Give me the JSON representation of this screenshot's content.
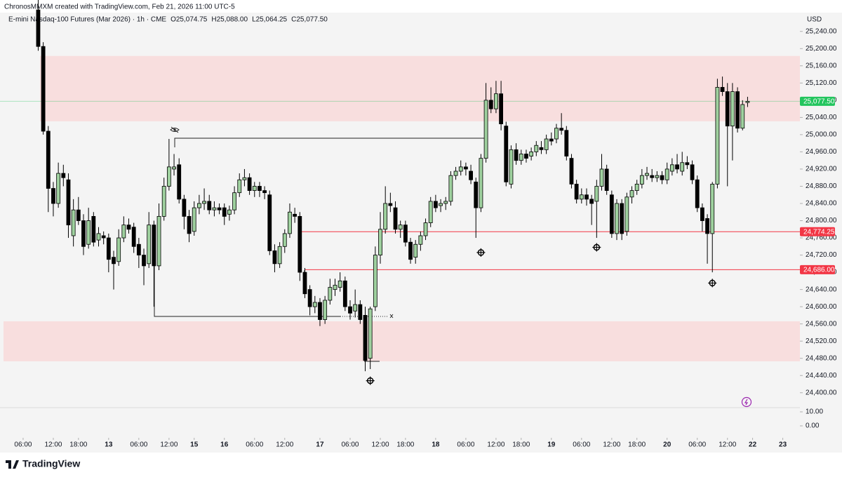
{
  "header": {
    "credit": "ChronosMMXM created with TradingView.com, Feb 21, 2026 11:00 UTC-5",
    "brand": "TradingView"
  },
  "chart_data": {
    "type": "candlestick",
    "title": "E-mini Nasdaq-100 Futures (Mar 2026) · 1h · CME",
    "ohlc_legend": [
      "O25,074.75",
      "H25,088.00",
      "L25,064.25",
      "C25,077.50"
    ],
    "currency": "USD",
    "up_color": "#9fd19f",
    "down_color": "#000000",
    "x": [
      3,
      4,
      5,
      6,
      7,
      8,
      9,
      10,
      11,
      12,
      13,
      14,
      15,
      16,
      17,
      18,
      19,
      20,
      21,
      22,
      23,
      24,
      25,
      26,
      27,
      28,
      29,
      30,
      31,
      32,
      33,
      34,
      35,
      36,
      37,
      38,
      39,
      40,
      41,
      42,
      43,
      44,
      45,
      46,
      47,
      48,
      49,
      50,
      51,
      52,
      53,
      54,
      55,
      56,
      57,
      58,
      59,
      60,
      61,
      62,
      63,
      64,
      65,
      66,
      67,
      68,
      69,
      70,
      71,
      72,
      73,
      74,
      75,
      76,
      77,
      78,
      79,
      80,
      81,
      82,
      83,
      84,
      85,
      86,
      87,
      88,
      89,
      90,
      91,
      92,
      93,
      94,
      95,
      96,
      97,
      98,
      99,
      100,
      101,
      102,
      103,
      104,
      105,
      106,
      107,
      108,
      109,
      110,
      111,
      112,
      113,
      114,
      115,
      116,
      117,
      118,
      119,
      120,
      121,
      122,
      123,
      124,
      125,
      126,
      127,
      128,
      129,
      130,
      131,
      132,
      133,
      134,
      135,
      136,
      137,
      138,
      139,
      140,
      141,
      142,
      143,
      144
    ],
    "open": [
      25290,
      25205,
      25008,
      24875,
      24840,
      24910,
      24895,
      24765,
      24825,
      24800,
      24745,
      24810,
      24755,
      24765,
      24760,
      24715,
      24705,
      24760,
      24790,
      24785,
      24745,
      24720,
      24700,
      24790,
      24695,
      24810,
      24880,
      24920,
      24930,
      24850,
      24810,
      24775,
      24830,
      24840,
      24845,
      24825,
      24830,
      24830,
      24815,
      24825,
      24865,
      24895,
      24900,
      24870,
      24880,
      24870,
      24860,
      24730,
      24700,
      24740,
      24770,
      24815,
      24810,
      24680,
      24640,
      24600,
      24610,
      24570,
      24615,
      24640,
      24645,
      24660,
      24600,
      24590,
      24605,
      24580,
      24480,
      24600,
      24720,
      24780,
      24840,
      24830,
      24780,
      24790,
      24750,
      24715,
      24745,
      24765,
      24795,
      24845,
      24835,
      24840,
      24845,
      24905,
      24915,
      24925,
      24915,
      24890,
      24830,
      24945,
      25080,
      25060,
      25095,
      25020,
      24885,
      24965,
      24940,
      24955,
      24950,
      24960,
      24970,
      24965,
      24990,
      24990,
      25015,
      25010,
      24945,
      24885,
      24850,
      24860,
      24850,
      24845,
      24880,
      24920,
      24860,
      24770,
      24840,
      24775,
      24855,
      24870,
      24885,
      24905,
      24905,
      24900,
      24905,
      24895,
      24915,
      24930,
      24915,
      24935,
      24930,
      24895,
      24830,
      24805,
      24770,
      24885,
      25110,
      25100,
      25020,
      25100,
      25015,
      25074.75
    ],
    "high": [
      25330,
      25215,
      25020,
      24890,
      24935,
      24930,
      24910,
      24850,
      24855,
      24815,
      24830,
      24820,
      24785,
      24775,
      24770,
      24730,
      24780,
      24810,
      24805,
      24795,
      24760,
      24735,
      24820,
      24800,
      24840,
      24900,
      24990,
      24955,
      24945,
      24860,
      24825,
      24845,
      24860,
      24875,
      24860,
      24845,
      24840,
      24840,
      24835,
      24880,
      24910,
      24920,
      24910,
      24890,
      24890,
      24880,
      24870,
      24745,
      24750,
      24780,
      24840,
      24830,
      24820,
      24690,
      24650,
      24625,
      24620,
      24625,
      24665,
      24665,
      24680,
      24670,
      24615,
      24640,
      24615,
      24600,
      24600,
      24740,
      24820,
      24880,
      24865,
      24845,
      24800,
      24800,
      24760,
      24755,
      24775,
      24805,
      24855,
      24860,
      24850,
      24855,
      24915,
      24925,
      24940,
      24935,
      24930,
      24900,
      24955,
      25120,
      25110,
      25125,
      25125,
      25030,
      24975,
      24980,
      24965,
      24965,
      24970,
      24985,
      24985,
      25000,
      25005,
      25025,
      25050,
      25020,
      24955,
      24895,
      24875,
      24875,
      24860,
      24895,
      24955,
      24930,
      24870,
      24850,
      24850,
      24865,
      24880,
      24895,
      24920,
      24925,
      24920,
      24915,
      24915,
      24935,
      24945,
      24955,
      24960,
      24950,
      24940,
      24905,
      24840,
      24815,
      24890,
      25130,
      25135,
      25120,
      25120,
      25110,
      25080,
      25088
    ],
    "low": [
      25195,
      25000,
      24820,
      24810,
      24830,
      24880,
      24760,
      24740,
      24790,
      24720,
      24735,
      24740,
      24740,
      24745,
      24680,
      24640,
      24695,
      24750,
      24770,
      24725,
      24690,
      24650,
      24690,
      24600,
      24685,
      24800,
      24870,
      24905,
      24840,
      24780,
      24750,
      24765,
      24815,
      24825,
      24815,
      24810,
      24815,
      24790,
      24800,
      24815,
      24855,
      24880,
      24860,
      24855,
      24855,
      24850,
      24720,
      24680,
      24690,
      24725,
      24760,
      24795,
      24660,
      24620,
      24580,
      24585,
      24555,
      24560,
      24605,
      24625,
      24635,
      24590,
      24570,
      24575,
      24560,
      24450,
      24455,
      24590,
      24700,
      24770,
      24820,
      24770,
      24760,
      24740,
      24700,
      24700,
      24730,
      24755,
      24785,
      24820,
      24820,
      24825,
      24835,
      24895,
      24905,
      24905,
      24885,
      24760,
      24820,
      24935,
      25050,
      25050,
      25010,
      24880,
      24875,
      24930,
      24930,
      24935,
      24940,
      24950,
      24955,
      24955,
      24975,
      24980,
      25000,
      24940,
      24875,
      24840,
      24840,
      24835,
      24790,
      24760,
      24870,
      24860,
      24760,
      24755,
      24755,
      24765,
      24840,
      24860,
      24875,
      24895,
      24890,
      24890,
      24885,
      24885,
      24905,
      24910,
      24905,
      24920,
      24885,
      24820,
      24775,
      24700,
      24680,
      24875,
      25090,
      24880,
      24940,
      25005,
      25010,
      25064.25
    ],
    "close": [
      25205,
      25008,
      24875,
      24840,
      24910,
      24900,
      24790,
      24825,
      24800,
      24740,
      24800,
      24750,
      24770,
      24760,
      24710,
      24700,
      24760,
      24790,
      24780,
      24740,
      24720,
      24695,
      24790,
      24695,
      24810,
      24880,
      24925,
      24925,
      24850,
      24810,
      24770,
      24830,
      24840,
      24845,
      24825,
      24830,
      24825,
      24810,
      24825,
      24865,
      24895,
      24900,
      24870,
      24880,
      24870,
      24865,
      24730,
      24700,
      24740,
      24770,
      24820,
      24810,
      24680,
      24630,
      24600,
      24610,
      24570,
      24615,
      24645,
      24650,
      24660,
      24600,
      24585,
      24605,
      24570,
      24475,
      24595,
      24720,
      24780,
      24840,
      24835,
      24780,
      24790,
      24750,
      24710,
      24745,
      24765,
      24795,
      24845,
      24830,
      24840,
      24845,
      24905,
      24915,
      24925,
      24920,
      24895,
      24830,
      24945,
      25080,
      25060,
      25095,
      25025,
      24890,
      24965,
      24940,
      24955,
      24945,
      24960,
      24975,
      24965,
      24990,
      24985,
      25015,
      25010,
      24950,
      24885,
      24850,
      24860,
      24850,
      24840,
      24880,
      24920,
      24870,
      24770,
      24840,
      24770,
      24855,
      24870,
      24885,
      24905,
      24910,
      24900,
      24905,
      24895,
      24920,
      24930,
      24920,
      24935,
      24930,
      24895,
      24830,
      24800,
      24770,
      24885,
      25110,
      25100,
      25020,
      25100,
      25015,
      25070,
      25077.5
    ],
    "xlim": [
      -3.2,
      154.4
    ],
    "xticks": [
      {
        "value": 0,
        "label": "06:00"
      },
      {
        "value": 6,
        "label": "12:00"
      },
      {
        "value": 11,
        "label": "18:00"
      },
      {
        "value": 17,
        "label": "13"
      },
      {
        "value": 23,
        "label": "06:00"
      },
      {
        "value": 29,
        "label": "12:00"
      },
      {
        "value": 34,
        "label": "15"
      },
      {
        "value": 40,
        "label": "16"
      },
      {
        "value": 46,
        "label": "06:00"
      },
      {
        "value": 52,
        "label": "12:00"
      },
      {
        "value": 59,
        "label": "17"
      },
      {
        "value": 65,
        "label": "06:00"
      },
      {
        "value": 71,
        "label": "12:00"
      },
      {
        "value": 76,
        "label": "18:00"
      },
      {
        "value": 82,
        "label": "18"
      },
      {
        "value": 88,
        "label": "06:00"
      },
      {
        "value": 94,
        "label": "12:00"
      },
      {
        "value": 99,
        "label": "18:00"
      },
      {
        "value": 105,
        "label": "19"
      },
      {
        "value": 111,
        "label": "06:00"
      },
      {
        "value": 117,
        "label": "12:00"
      },
      {
        "value": 122,
        "label": "18:00"
      },
      {
        "value": 128,
        "label": "20"
      },
      {
        "value": 134,
        "label": "06:00"
      },
      {
        "value": 140,
        "label": "12:00"
      },
      {
        "value": 145,
        "label": "22"
      },
      {
        "value": 151,
        "label": "23"
      }
    ],
    "ylim": [
      24367,
      25313
    ],
    "yticks": [
      {
        "value": 25240,
        "label": "25,240.00"
      },
      {
        "value": 25200,
        "label": "25,200.00"
      },
      {
        "value": 25160,
        "label": "25,160.00"
      },
      {
        "value": 25120,
        "label": "25,120.00"
      },
      {
        "value": 25080,
        "label": "25,080.00"
      },
      {
        "value": 25040,
        "label": "25,040.00"
      },
      {
        "value": 25000,
        "label": "25,000.00"
      },
      {
        "value": 24960,
        "label": "24,960.00"
      },
      {
        "value": 24920,
        "label": "24,920.00"
      },
      {
        "value": 24880,
        "label": "24,880.00"
      },
      {
        "value": 24840,
        "label": "24,840.00"
      },
      {
        "value": 24800,
        "label": "24,800.00"
      },
      {
        "value": 24760,
        "label": "24,760.00"
      },
      {
        "value": 24720,
        "label": "24,720.00"
      },
      {
        "value": 24680,
        "label": "24,680.00"
      },
      {
        "value": 24640,
        "label": "24,640.00"
      },
      {
        "value": 24600,
        "label": "24,600.00"
      },
      {
        "value": 24560,
        "label": "24,560.00"
      },
      {
        "value": 24520,
        "label": "24,520.00"
      },
      {
        "value": 24480,
        "label": "24,480.00"
      },
      {
        "value": 24440,
        "label": "24,440.00"
      },
      {
        "value": 24400,
        "label": "24,400.00"
      }
    ],
    "grid": false,
    "volume_lim": [
      -6.5,
      13
    ],
    "volume_ticks": [
      {
        "value": 10,
        "label": "10.00"
      },
      {
        "value": 0,
        "label": "0.00"
      }
    ],
    "zones": [
      {
        "from": 25031,
        "to": 25183,
        "color": "#f8dede"
      },
      {
        "from": 24473,
        "to": 24566,
        "color": "#f8dede"
      }
    ],
    "levels": [
      {
        "value": 24774.25,
        "label": "24,774.25",
        "color": "#f23645"
      },
      {
        "value": 24686,
        "label": "24,686.00",
        "color": "#f23645"
      }
    ],
    "last_price": {
      "value": 25077.5,
      "label": "25,077.50",
      "color": "#22c55e"
    },
    "markers": [
      {
        "x": 69,
        "y": 24428
      },
      {
        "x": 91,
        "y": 24726
      },
      {
        "x": 114,
        "y": 24738
      },
      {
        "x": 137,
        "y": 24655
      }
    ]
  }
}
